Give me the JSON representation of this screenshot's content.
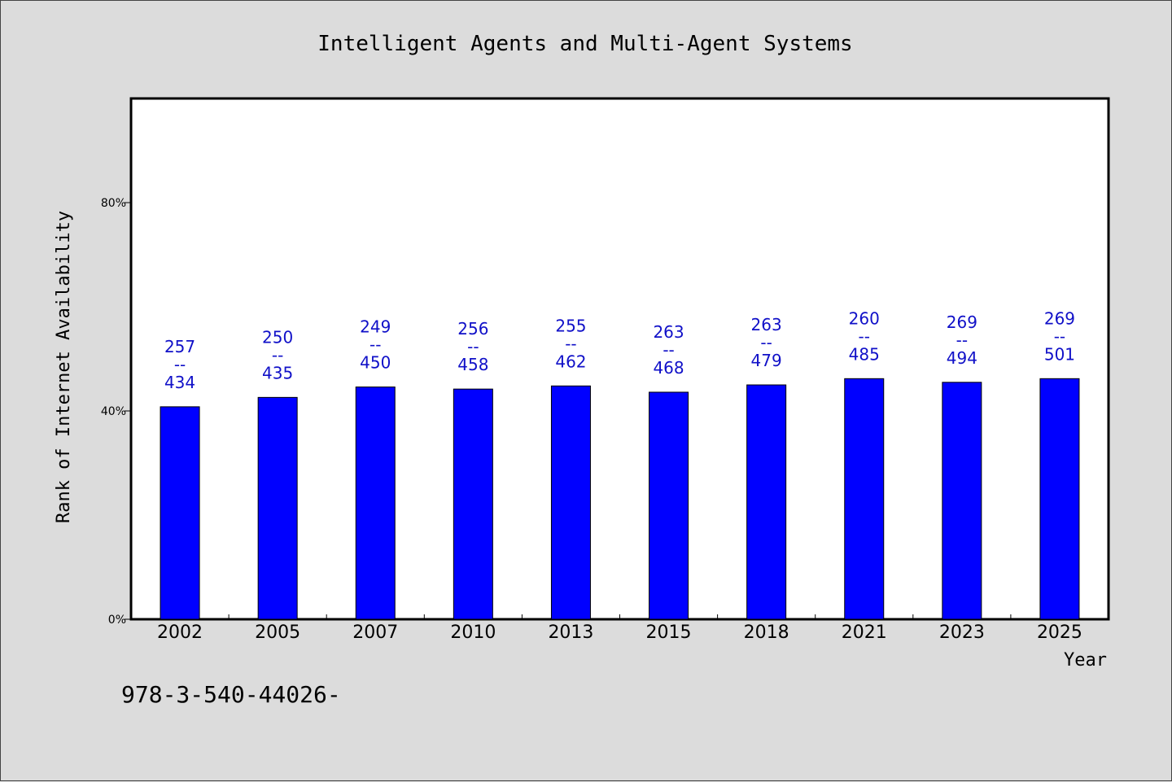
{
  "chart_data": {
    "type": "bar",
    "title": "Intelligent Agents and Multi-Agent Systems",
    "xlabel": "Year",
    "ylabel": "Rank of Internet Availability",
    "ylim": [
      0,
      100
    ],
    "yticks": [
      0,
      40,
      80
    ],
    "ytick_labels": [
      "0%",
      "40%",
      "80%"
    ],
    "categories": [
      "2002",
      "2005",
      "2007",
      "2010",
      "2013",
      "2015",
      "2018",
      "2021",
      "2023",
      "2025"
    ],
    "values": [
      40.8,
      42.6,
      44.6,
      44.2,
      44.8,
      43.6,
      45.0,
      46.2,
      45.5,
      46.2
    ],
    "bar_labels": [
      {
        "top": "257",
        "sep": "--",
        "bottom": "434"
      },
      {
        "top": "250",
        "sep": "--",
        "bottom": "435"
      },
      {
        "top": "249",
        "sep": "--",
        "bottom": "450"
      },
      {
        "top": "256",
        "sep": "--",
        "bottom": "458"
      },
      {
        "top": "255",
        "sep": "--",
        "bottom": "462"
      },
      {
        "top": "263",
        "sep": "--",
        "bottom": "468"
      },
      {
        "top": "263",
        "sep": "--",
        "bottom": "479"
      },
      {
        "top": "260",
        "sep": "--",
        "bottom": "485"
      },
      {
        "top": "269",
        "sep": "--",
        "bottom": "494"
      },
      {
        "top": "269",
        "sep": "--",
        "bottom": "501"
      }
    ],
    "bar_color": "#0000ff",
    "label_color": "#1010c8",
    "grid": false
  },
  "footer_text": "978-3-540-44026-"
}
